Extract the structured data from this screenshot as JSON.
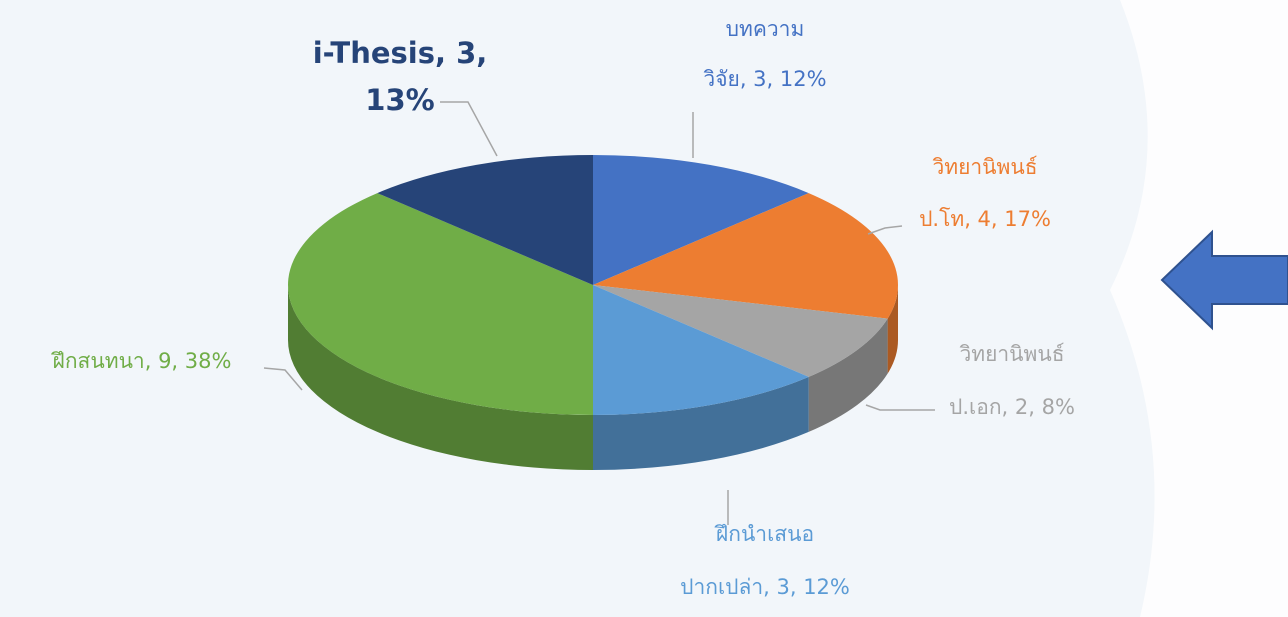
{
  "chart_data": {
    "type": "pie3d",
    "values": [
      3,
      4,
      2,
      3,
      9,
      3
    ],
    "labels": [
      [
        "บทความ",
        "วิจัย, 3, 12%"
      ],
      [
        "วิทยานิพนธ์",
        "ป.โท, 4, 17%"
      ],
      [
        "วิทยานิพนธ์",
        "ป.เอก, 2, 8%"
      ],
      [
        "ฝึกนำเสนอ",
        "ปากเปล่า, 3, 12%"
      ],
      [
        "ฝึกสนทนา, 9, 38%"
      ],
      [
        "i-Thesis, 3,",
        "13%"
      ]
    ],
    "colors": [
      "#4472c4",
      "#ed7d31",
      "#a5a5a5",
      "#5b9bd5",
      "#70ad47",
      "#264478"
    ]
  }
}
